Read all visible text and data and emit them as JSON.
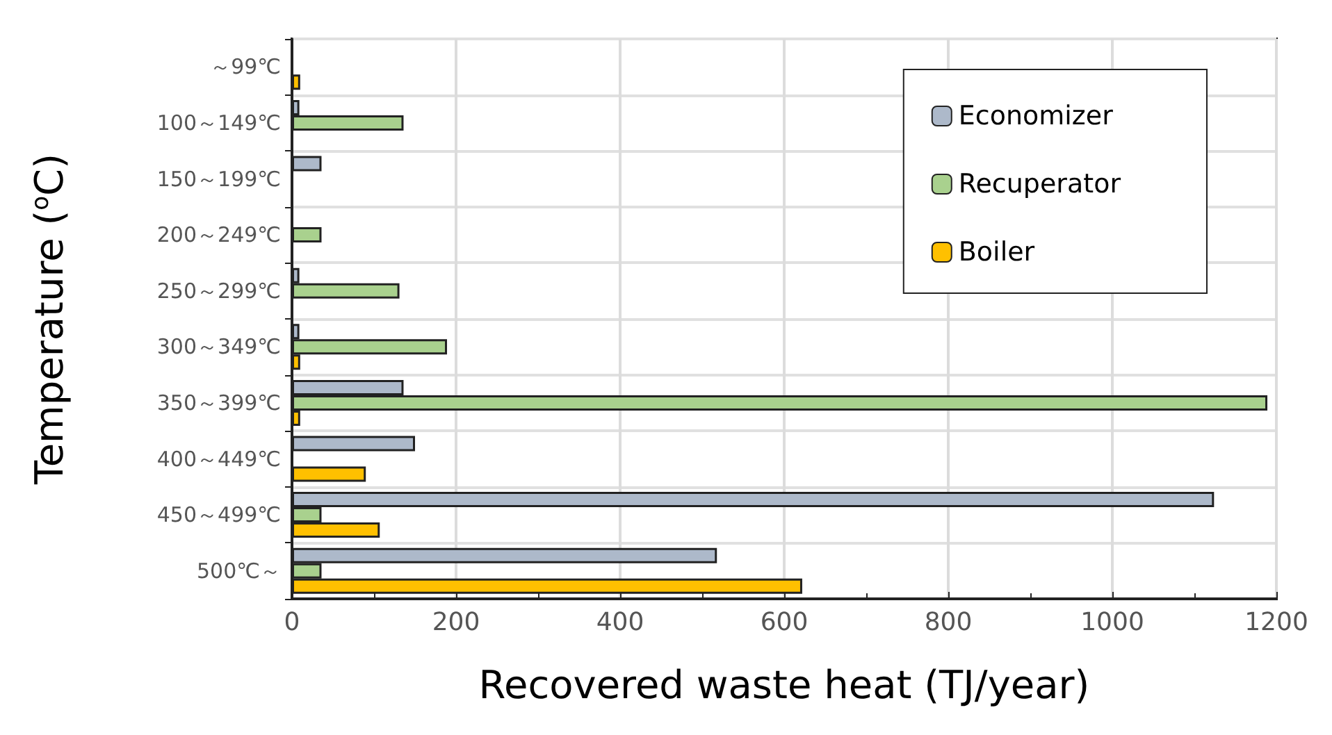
{
  "chart_data": {
    "type": "bar",
    "orientation": "horizontal",
    "xlabel": "Recovered waste heat (TJ/year)",
    "ylabel": "Temperature ($^{o}$C)",
    "categories": [
      "～99℃",
      "100～149℃",
      "150～199℃",
      "200～249℃",
      "250～299℃",
      "300～349℃",
      "350～399℃",
      "400～449℃",
      "450～499℃",
      "500℃～"
    ],
    "series": [
      {
        "name": "Economizer",
        "color": "#adb9ca",
        "values": [
          null,
          9,
          36,
          null,
          9,
          9,
          136,
          150,
          1124,
          518
        ]
      },
      {
        "name": "Recuperator",
        "color": "#a9d18e",
        "values": [
          null,
          136,
          null,
          36,
          131,
          189,
          1189,
          null,
          36,
          36
        ]
      },
      {
        "name": "Boiler",
        "color": "#ffc000",
        "values": [
          10,
          null,
          null,
          null,
          null,
          10,
          10,
          90,
          107,
          622
        ]
      }
    ],
    "xlim": [
      0,
      1200
    ],
    "xticks": [
      0,
      200,
      400,
      600,
      800,
      1000,
      1200
    ],
    "grid": true,
    "legend": "top right"
  }
}
